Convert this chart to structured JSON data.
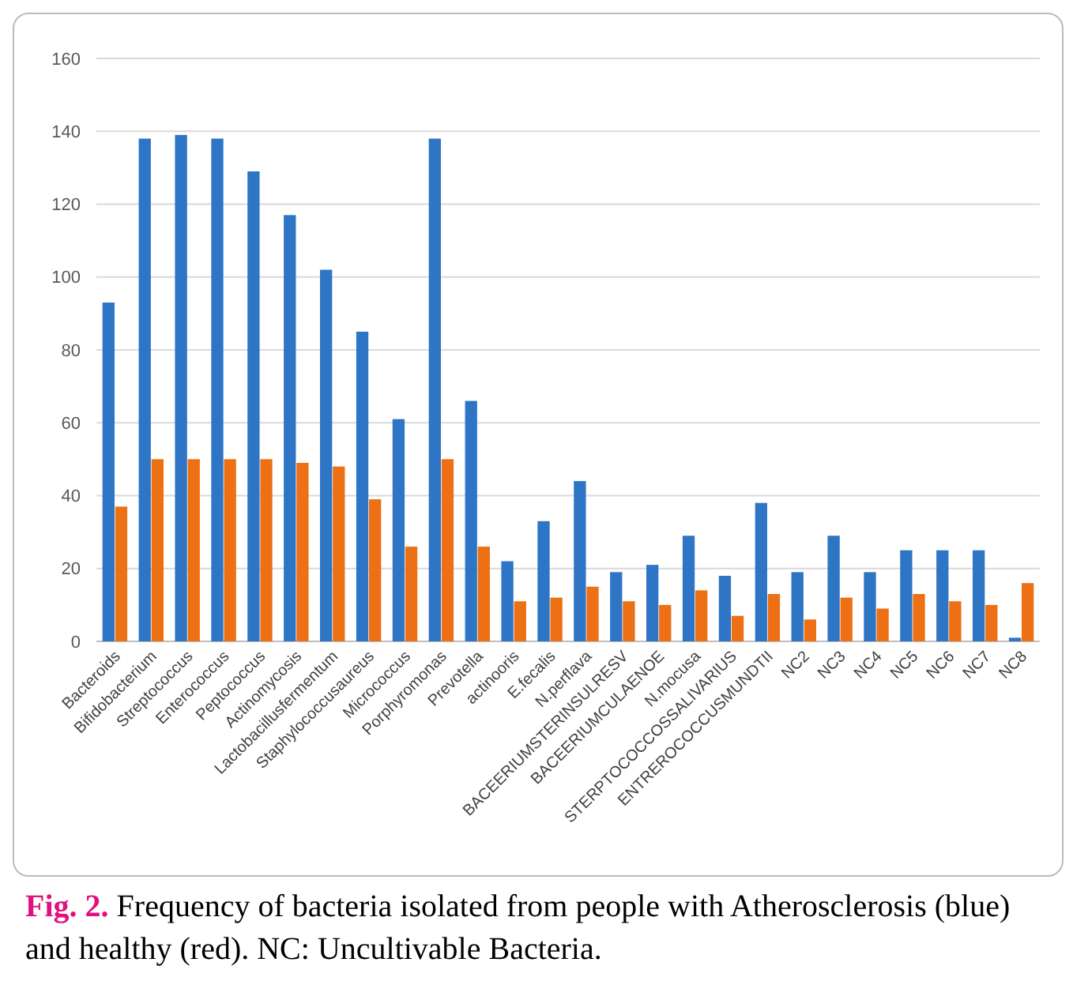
{
  "chart_data": {
    "type": "bar",
    "categories": [
      "Bacteroids",
      "Bifidobacterium",
      "Streptococcus",
      "Enterococcus",
      "Peptococcus",
      "Actinomycosis",
      "Lactobacillusfermentum",
      "Staphylococcusaureus",
      "Micrococcus",
      "Porphyromonas",
      "Prevotella",
      "actinooris",
      "E.fecalis",
      "N.perflava",
      "BACEERIUMSTERINSULRESV",
      "BACEERIUMCULAENOE",
      "N.mocusa",
      "STERPTOCOCCOSSALIVARIUS",
      "ENTREROCOCCUSMUNDTII",
      "NC2",
      "NC3",
      "NC4",
      "NC5",
      "NC6",
      "NC7",
      "NC8"
    ],
    "series": [
      {
        "color": "#2e75c6",
        "values": [
          93,
          138,
          139,
          138,
          129,
          117,
          102,
          85,
          61,
          138,
          66,
          22,
          33,
          44,
          19,
          21,
          29,
          18,
          38,
          19,
          29,
          19,
          25,
          25,
          25,
          1
        ]
      },
      {
        "color": "#ed7014",
        "values": [
          37,
          50,
          50,
          50,
          50,
          49,
          48,
          39,
          26,
          50,
          26,
          11,
          12,
          15,
          11,
          10,
          14,
          7,
          13,
          6,
          12,
          9,
          13,
          11,
          10,
          16
        ]
      }
    ],
    "ylim": [
      0,
      160
    ],
    "yticks": [
      0,
      20,
      40,
      60,
      80,
      100,
      120,
      140,
      160
    ],
    "grid": "y",
    "annotations": [
      "Fig. 2.",
      "Frequency of bacteria isolated from people with Atherosclerosis (blue) and healthy (red). NC: Uncultivable Bacteria."
    ]
  }
}
